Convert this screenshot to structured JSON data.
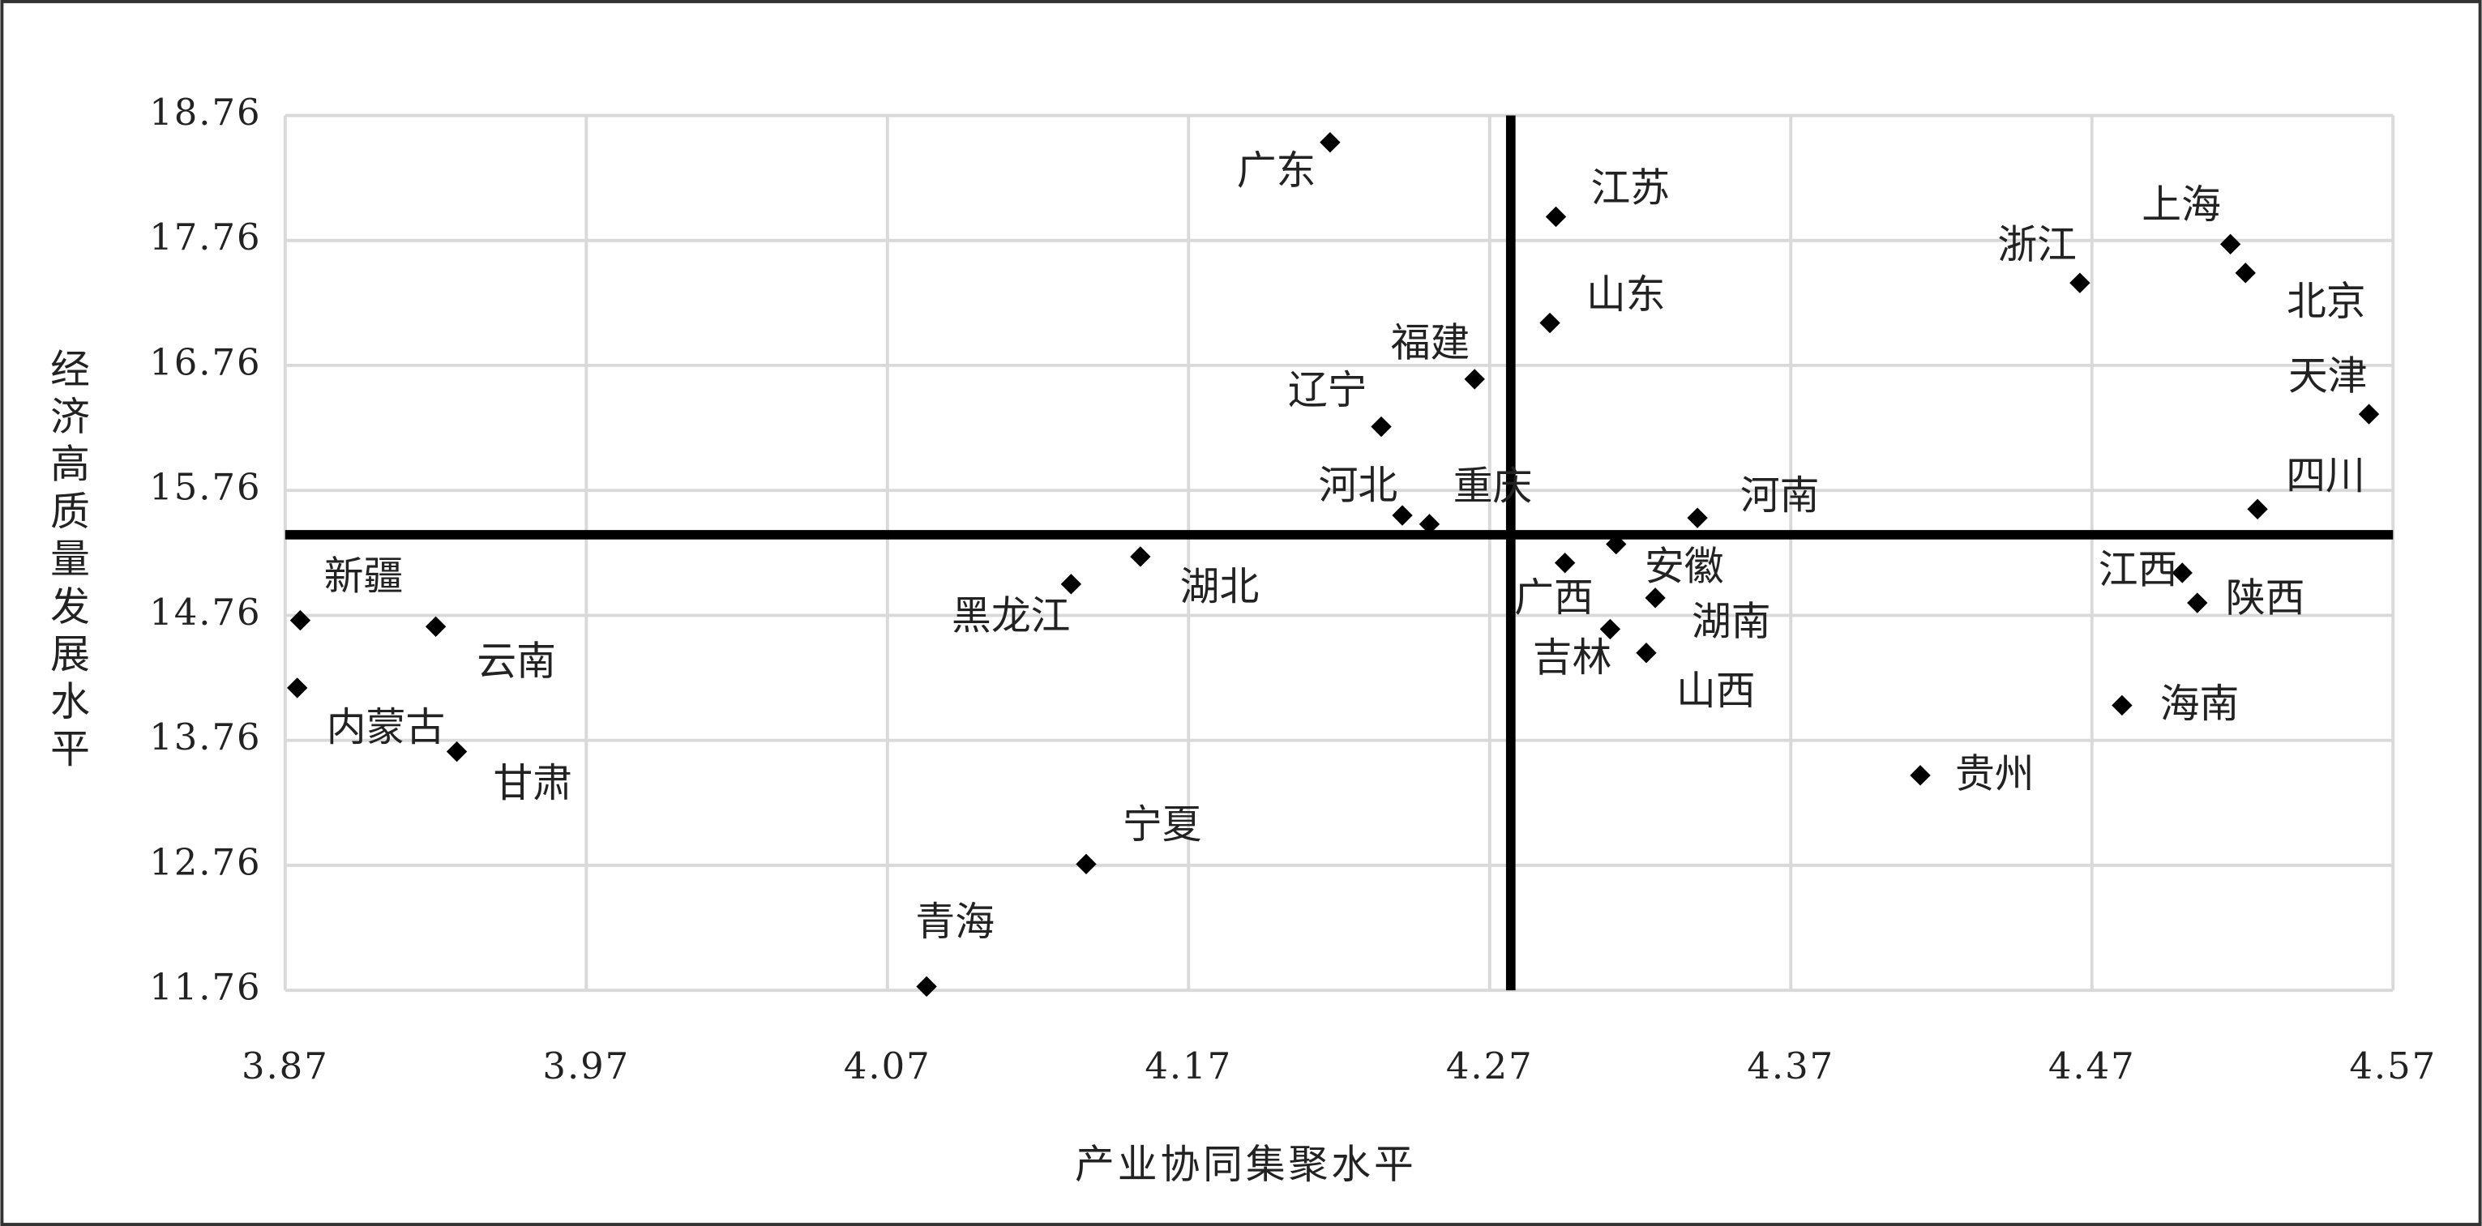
{
  "chart_data": {
    "type": "scatter",
    "x_label": "产业协同集聚水平",
    "y_label": "经济高质量发展水平",
    "xlim": [
      3.87,
      4.57
    ],
    "xticks": [
      3.87,
      3.97,
      4.07,
      4.17,
      4.27,
      4.37,
      4.47,
      4.57
    ],
    "ylim": [
      11.76,
      18.76
    ],
    "yticks": [
      11.76,
      12.76,
      13.76,
      14.76,
      15.76,
      16.76,
      17.76,
      18.76
    ],
    "grid": true,
    "color": "#000000",
    "reference_lines": {
      "x": 4.277,
      "y": 15.405
    },
    "labels": [
      "广东",
      "江苏",
      "山东",
      "浙江",
      "上海",
      "北京",
      "天津",
      "福建",
      "辽宁",
      "河北",
      "重庆",
      "河南",
      "四川",
      "湖北",
      "黑龙江",
      "广西",
      "安徽",
      "湖南",
      "吉林",
      "山西",
      "江西",
      "陕西",
      "海南",
      "贵州",
      "新疆",
      "云南",
      "内蒙古",
      "甘肃",
      "宁夏",
      "青海"
    ],
    "x": [
      4.217,
      4.292,
      4.29,
      4.466,
      4.516,
      4.521,
      4.562,
      4.265,
      4.234,
      4.241,
      4.25,
      4.339,
      4.525,
      4.154,
      4.131,
      4.295,
      4.312,
      4.325,
      4.31,
      4.322,
      4.5,
      4.505,
      4.48,
      4.413,
      3.875,
      3.92,
      3.874,
      3.927,
      4.136,
      4.083
    ],
    "y": [
      18.545,
      17.95,
      17.1,
      17.42,
      17.73,
      17.5,
      16.37,
      16.65,
      16.27,
      15.56,
      15.49,
      15.54,
      15.61,
      15.23,
      15.01,
      15.18,
      15.33,
      14.9,
      14.65,
      14.46,
      15.1,
      14.86,
      14.04,
      13.48,
      14.72,
      14.67,
      14.18,
      13.67,
      12.77,
      11.79
    ]
  }
}
